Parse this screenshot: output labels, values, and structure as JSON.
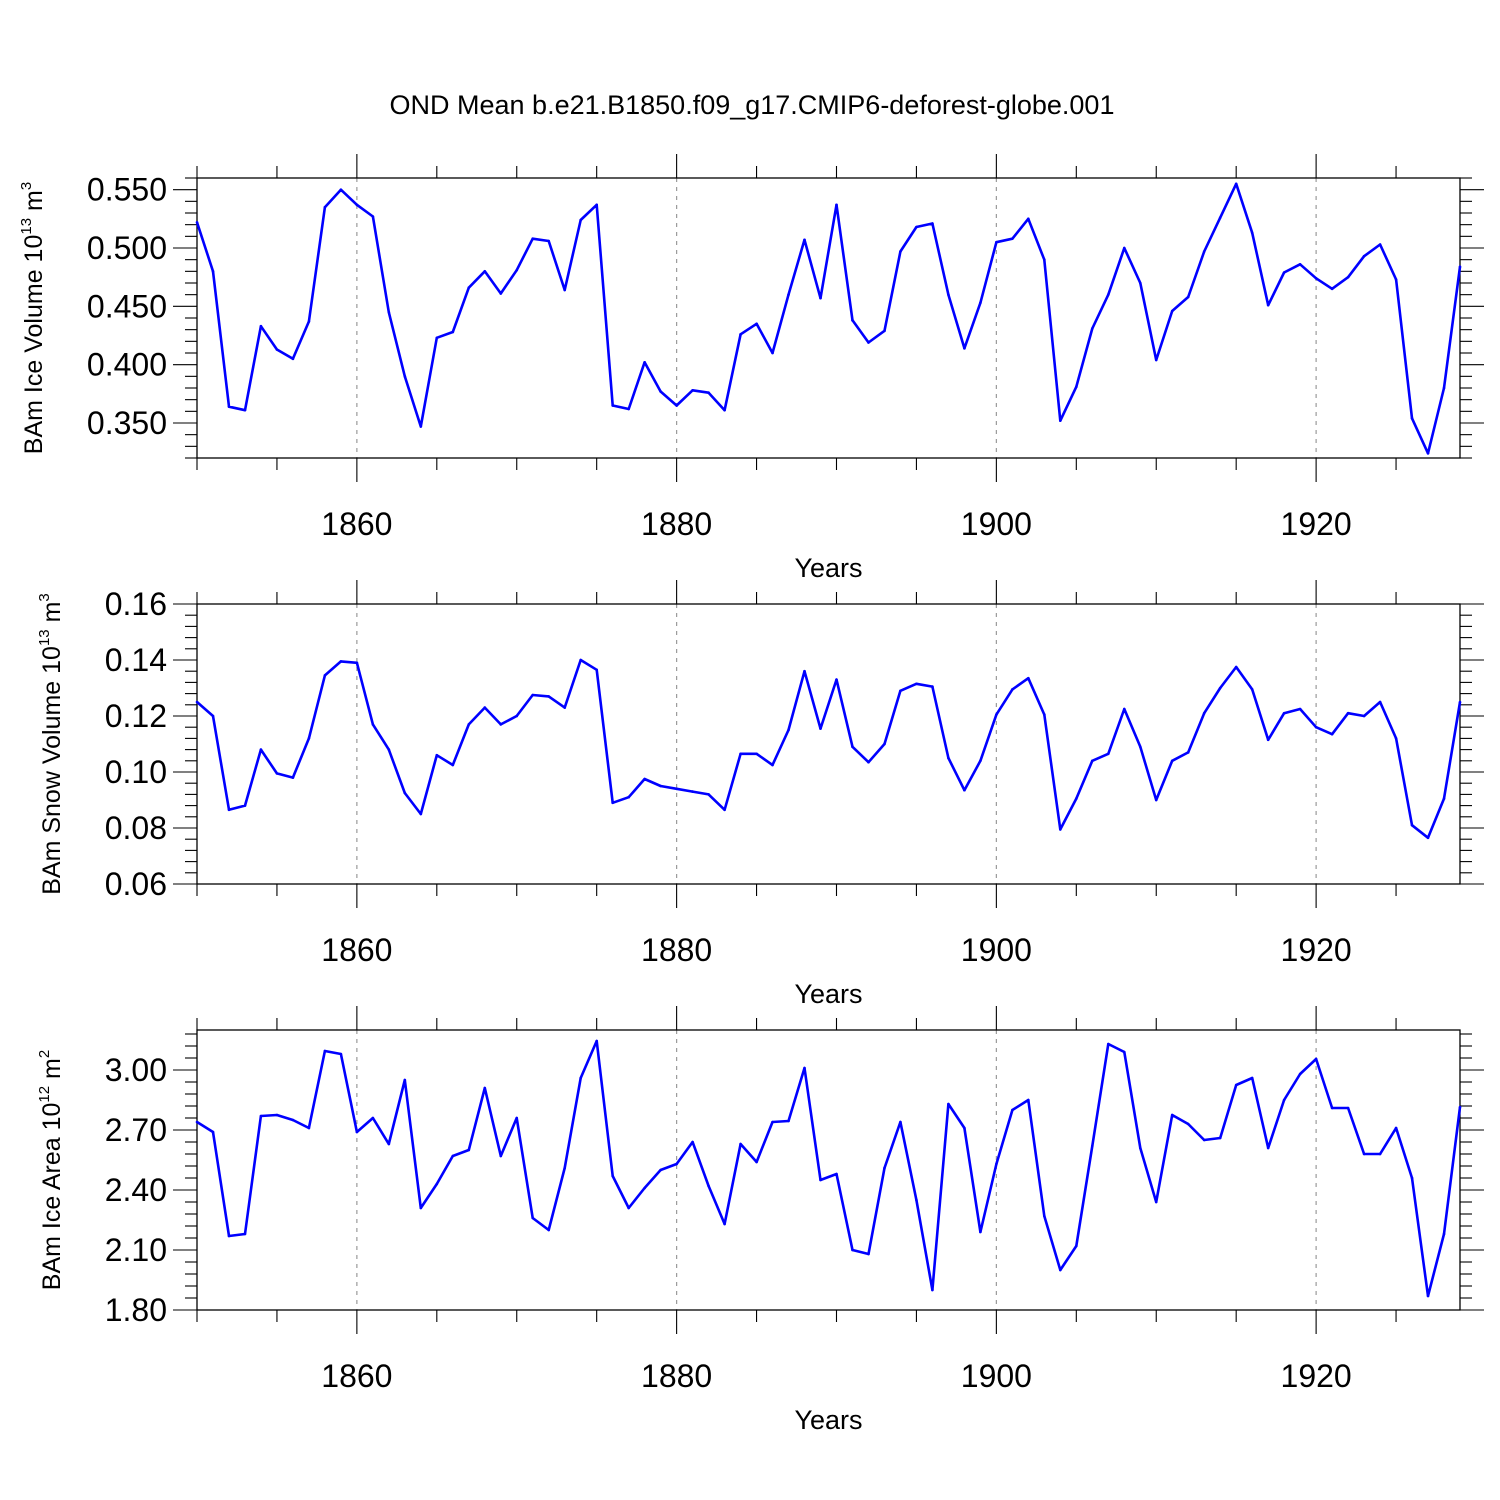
{
  "title": "OND Mean b.e21.B1850.f09_g17.CMIP6-deforest-globe.001",
  "colors": {
    "series": "#0000ff",
    "grid": "#9a9a9a",
    "frame": "#000000"
  },
  "chart_data": [
    {
      "type": "line",
      "name": "ice-volume",
      "ylabel": {
        "main": "BAm Ice Volume 10",
        "exp": "13",
        "unit": " m",
        "unit_exp": "3"
      },
      "xlabel": "Years",
      "xlim": [
        1850,
        1929
      ],
      "ylim": [
        0.32,
        0.56
      ],
      "yticks": [
        0.35,
        0.4,
        0.45,
        0.5,
        0.55
      ],
      "ytick_labels": [
        "0.350",
        "0.400",
        "0.450",
        "0.500",
        "0.550"
      ],
      "xticks": [
        1860,
        1880,
        1900,
        1920
      ],
      "xtick_labels": [
        "1860",
        "1880",
        "1900",
        "1920"
      ],
      "x_start": 1850,
      "values": [
        0.522,
        0.48,
        0.364,
        0.361,
        0.433,
        0.413,
        0.405,
        0.437,
        0.535,
        0.55,
        0.537,
        0.527,
        0.445,
        0.39,
        0.347,
        0.423,
        0.428,
        0.466,
        0.48,
        0.461,
        0.481,
        0.508,
        0.506,
        0.464,
        0.524,
        0.537,
        0.365,
        0.362,
        0.402,
        0.377,
        0.365,
        0.378,
        0.376,
        0.361,
        0.426,
        0.435,
        0.41,
        0.46,
        0.507,
        0.457,
        0.537,
        0.438,
        0.419,
        0.429,
        0.497,
        0.518,
        0.521,
        0.46,
        0.414,
        0.453,
        0.505,
        0.508,
        0.525,
        0.49,
        0.352,
        0.381,
        0.431,
        0.46,
        0.5,
        0.47,
        0.404,
        0.446,
        0.458,
        0.497,
        0.526,
        0.555,
        0.513,
        0.451,
        0.479,
        0.486,
        0.474,
        0.465,
        0.475,
        0.493,
        0.503,
        0.473,
        0.354,
        0.324,
        0.38,
        0.484
      ]
    },
    {
      "type": "line",
      "name": "snow-volume",
      "ylabel": {
        "main": "BAm Snow Volume 10",
        "exp": "13",
        "unit": " m",
        "unit_exp": "3"
      },
      "xlabel": "Years",
      "xlim": [
        1850,
        1929
      ],
      "ylim": [
        0.06,
        0.16
      ],
      "yticks": [
        0.06,
        0.08,
        0.1,
        0.12,
        0.14,
        0.16
      ],
      "ytick_labels": [
        "0.06",
        "0.08",
        "0.10",
        "0.12",
        "0.14",
        "0.16"
      ],
      "xticks": [
        1860,
        1880,
        1900,
        1920
      ],
      "xtick_labels": [
        "1860",
        "1880",
        "1900",
        "1920"
      ],
      "x_start": 1850,
      "values": [
        0.125,
        0.12,
        0.0865,
        0.088,
        0.108,
        0.0995,
        0.098,
        0.112,
        0.1345,
        0.1395,
        0.139,
        0.117,
        0.108,
        0.0925,
        0.085,
        0.106,
        0.1025,
        0.117,
        0.123,
        0.117,
        0.12,
        0.1275,
        0.127,
        0.123,
        0.14,
        0.1365,
        0.089,
        0.091,
        0.0975,
        0.095,
        0.094,
        0.093,
        0.092,
        0.0865,
        0.1065,
        0.1065,
        0.1025,
        0.115,
        0.136,
        0.1155,
        0.133,
        0.109,
        0.1035,
        0.11,
        0.129,
        0.1315,
        0.1305,
        0.105,
        0.0935,
        0.104,
        0.1205,
        0.1295,
        0.1335,
        0.1205,
        0.0795,
        0.0905,
        0.104,
        0.1065,
        0.1225,
        0.109,
        0.09,
        0.104,
        0.107,
        0.121,
        0.13,
        0.1375,
        0.1295,
        0.1115,
        0.121,
        0.1225,
        0.116,
        0.1135,
        0.121,
        0.12,
        0.125,
        0.112,
        0.081,
        0.0765,
        0.0905,
        0.125
      ]
    },
    {
      "type": "line",
      "name": "ice-area",
      "ylabel": {
        "main": "BAm Ice Area 10",
        "exp": "12",
        "unit": " m",
        "unit_exp": "2"
      },
      "xlabel": "Years",
      "xlim": [
        1850,
        1929
      ],
      "ylim": [
        1.8,
        3.2
      ],
      "yticks": [
        1.8,
        2.1,
        2.4,
        2.7,
        3.0
      ],
      "ytick_labels": [
        "1.80",
        "2.10",
        "2.40",
        "2.70",
        "3.00"
      ],
      "xticks": [
        1860,
        1880,
        1900,
        1920
      ],
      "xtick_labels": [
        "1860",
        "1880",
        "1900",
        "1920"
      ],
      "x_start": 1850,
      "values": [
        2.74,
        2.69,
        2.17,
        2.18,
        2.77,
        2.775,
        2.75,
        2.71,
        3.095,
        3.08,
        2.69,
        2.76,
        2.63,
        2.95,
        2.31,
        2.43,
        2.57,
        2.6,
        2.91,
        2.57,
        2.76,
        2.26,
        2.2,
        2.51,
        2.96,
        3.145,
        2.47,
        2.31,
        2.41,
        2.5,
        2.53,
        2.64,
        2.42,
        2.23,
        2.63,
        2.54,
        2.74,
        2.745,
        3.01,
        2.45,
        2.48,
        2.1,
        2.08,
        2.51,
        2.74,
        2.35,
        1.9,
        2.83,
        2.71,
        2.19,
        2.53,
        2.8,
        2.85,
        2.27,
        2.0,
        2.12,
        2.62,
        3.13,
        3.09,
        2.61,
        2.34,
        2.775,
        2.73,
        2.65,
        2.66,
        2.925,
        2.96,
        2.61,
        2.85,
        2.98,
        3.055,
        2.81,
        2.81,
        2.58,
        2.58,
        2.71,
        2.46,
        1.87,
        2.18,
        2.815
      ]
    }
  ]
}
